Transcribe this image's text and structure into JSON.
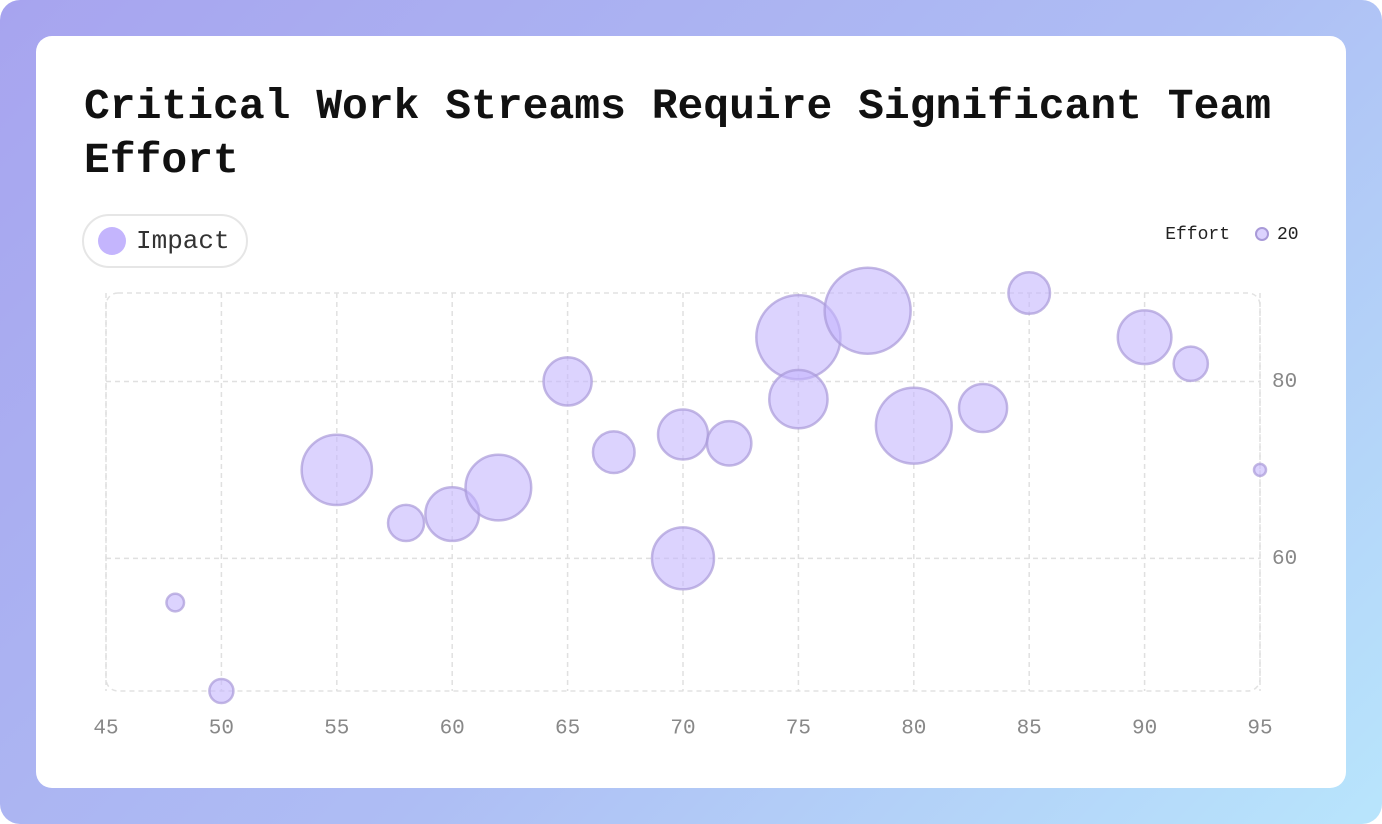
{
  "chart_data": {
    "type": "bubble",
    "title": "Critical Work Streams Require Significant Team Effort",
    "series": [
      {
        "name": "Impact",
        "color": "#c4b5fd",
        "x": [
          48,
          50,
          55,
          58,
          60,
          62,
          65,
          67,
          70,
          70,
          72,
          75,
          75,
          78,
          80,
          83,
          85,
          90,
          92,
          95
        ],
        "values": [
          55,
          45,
          70,
          64,
          65,
          68,
          80,
          72,
          74,
          60,
          73,
          85,
          78,
          88,
          75,
          77,
          90,
          85,
          82,
          70
        ],
        "sizes": [
          26,
          33,
          83,
          46,
          65,
          78,
          59,
          52,
          61,
          74,
          55,
          98,
          70,
          100,
          89,
          59,
          52,
          65,
          44,
          20
        ]
      }
    ],
    "size_legend": {
      "title": "Effort",
      "values": [
        20
      ]
    },
    "xlim": [
      45,
      95
    ],
    "xticks": [
      45,
      50,
      55,
      60,
      65,
      70,
      75,
      80,
      85,
      90,
      95
    ],
    "ylim": [
      45,
      90
    ],
    "yticks": [
      60,
      80
    ],
    "grid": true,
    "y_axis_side": "right",
    "legend": "top-left"
  }
}
